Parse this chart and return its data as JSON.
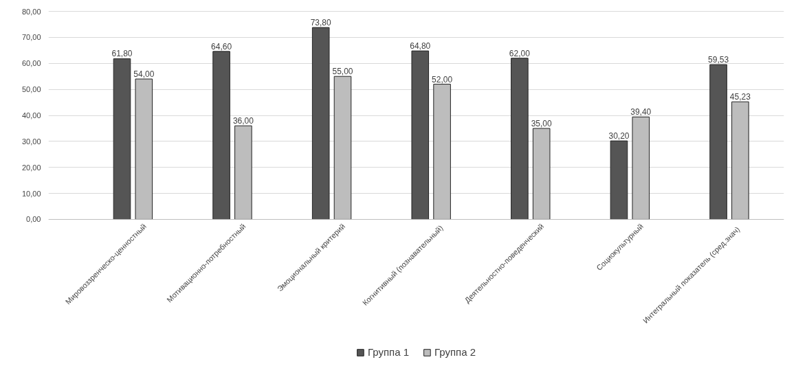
{
  "chart_data": {
    "type": "bar",
    "categories": [
      "Мировоззренческо-ценностный",
      "Мотивационно-потребностный",
      "Эмоциональный критерий",
      "Когнитивный  (познавательный)",
      "Деятельностно-поведенческий",
      "Социокультурный",
      "Интегральный  показатель  (сред.знач)"
    ],
    "series": [
      {
        "name": "Группа 1",
        "color": "#555555",
        "values": [
          61.8,
          64.6,
          73.8,
          64.8,
          62.0,
          30.2,
          59.53
        ],
        "value_labels": [
          "61,80",
          "64,60",
          "73,80",
          "64,80",
          "62,00",
          "30,20",
          "59,53"
        ]
      },
      {
        "name": "Группа 2",
        "color": "#bdbdbd",
        "values": [
          54.0,
          36.0,
          55.0,
          52.0,
          35.0,
          39.4,
          45.23
        ],
        "value_labels": [
          "54,00",
          "36,00",
          "55,00",
          "52,00",
          "35,00",
          "39,40",
          "45,23"
        ]
      }
    ],
    "ylim": [
      0,
      80
    ],
    "yticks": [
      {
        "value": 0,
        "label": "0,00"
      },
      {
        "value": 10,
        "label": "10,00"
      },
      {
        "value": 20,
        "label": "20,00"
      },
      {
        "value": 30,
        "label": "30,00"
      },
      {
        "value": 40,
        "label": "40,00"
      },
      {
        "value": 50,
        "label": "50,00"
      },
      {
        "value": 60,
        "label": "60,00"
      },
      {
        "value": 70,
        "label": "70,00"
      },
      {
        "value": 80,
        "label": "80,00"
      }
    ],
    "grid": "y",
    "legend": "bottom"
  }
}
